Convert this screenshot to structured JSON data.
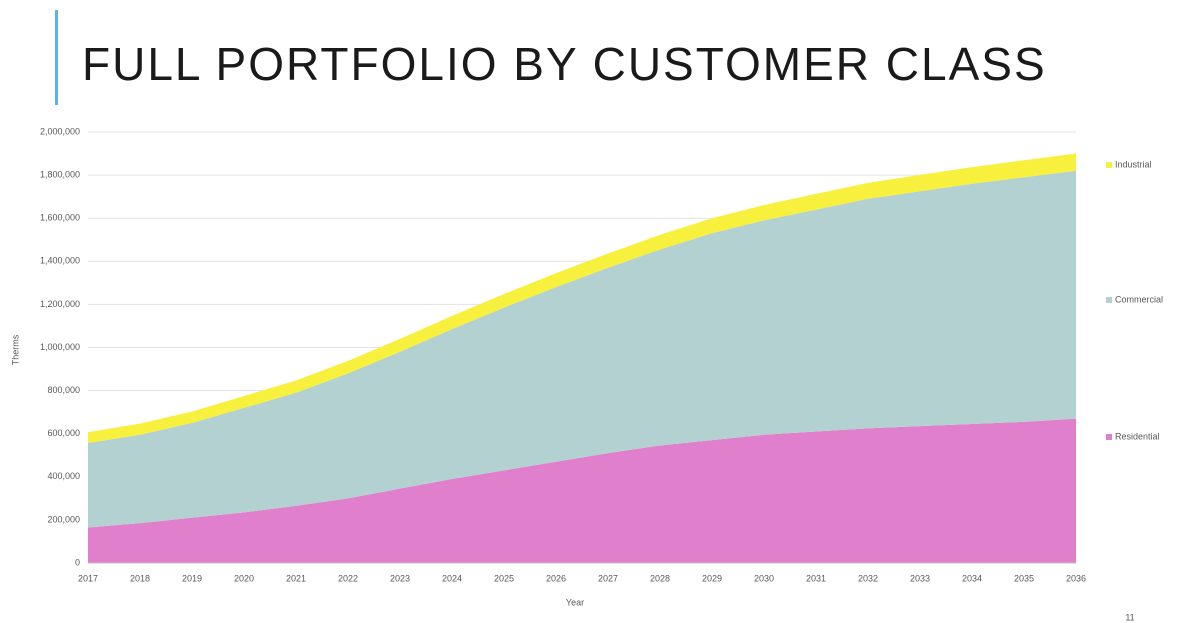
{
  "chart_data": {
    "type": "stacked_area",
    "title": "FULL PORTFOLIO BY CUSTOMER CLASS",
    "x_label": "Year",
    "y_label": "Therms",
    "page_number": "11",
    "categories": [
      "2017",
      "2018",
      "2019",
      "2020",
      "2021",
      "2022",
      "2023",
      "2024",
      "2025",
      "2026",
      "2027",
      "2028",
      "2029",
      "2030",
      "2031",
      "2032",
      "2033",
      "2034",
      "2035",
      "2036"
    ],
    "series": [
      {
        "name": "Residential",
        "color": "#e07fcb",
        "values": [
          165000,
          185000,
          210000,
          235000,
          265000,
          300000,
          345000,
          390000,
          430000,
          470000,
          510000,
          545000,
          570000,
          595000,
          610000,
          625000,
          635000,
          645000,
          655000,
          670000
        ]
      },
      {
        "name": "Commercial",
        "color": "#b3d1d0",
        "values": [
          392000,
          410000,
          440000,
          485000,
          525000,
          580000,
          635000,
          695000,
          755000,
          810000,
          860000,
          910000,
          960000,
          995000,
          1030000,
          1065000,
          1090000,
          1115000,
          1135000,
          1150000
        ]
      },
      {
        "name": "Industrial",
        "color": "#f7f03c",
        "values": [
          50000,
          52000,
          53000,
          55000,
          57000,
          58000,
          60000,
          62000,
          63000,
          65000,
          66000,
          68000,
          70000,
          71000,
          73000,
          74000,
          76000,
          77000,
          79000,
          80000
        ]
      }
    ],
    "ylim": [
      0,
      2000000
    ],
    "yticks": [
      0,
      {
        "value": 200000,
        "label": "200,000"
      },
      {
        "value": 400000,
        "label": "400,000"
      },
      {
        "value": 600000,
        "label": "600,000"
      },
      {
        "value": 800000,
        "label": "800,000"
      },
      {
        "value": 1000000,
        "label": "1,000,000"
      },
      {
        "value": 1200000,
        "label": "1,200,000"
      },
      {
        "value": 1400000,
        "label": "1,400,000"
      },
      {
        "value": 1600000,
        "label": "1,600,000"
      },
      {
        "value": 1800000,
        "label": "1,800,000"
      },
      {
        "value": 2000000,
        "label": "2,000,000"
      }
    ],
    "grid": true
  }
}
